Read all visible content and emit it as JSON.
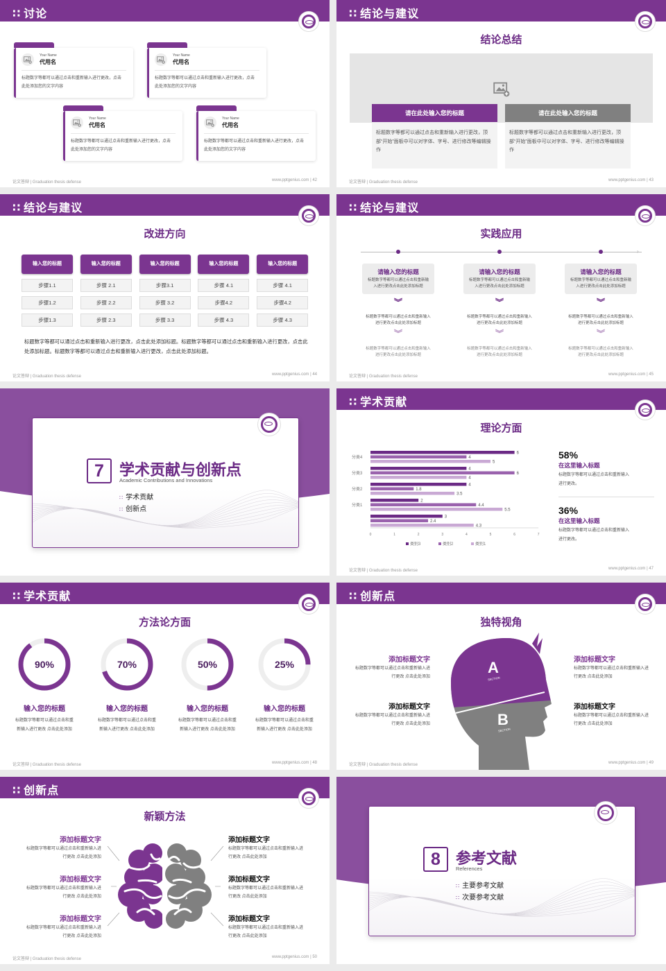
{
  "common": {
    "footer_left": "论文答辩 | Graduation thesis defense",
    "footer_url": "www.pptgenius.com",
    "header_icon": "grid-dots-icon"
  },
  "colors": {
    "primary": "#7b3590",
    "primary_dark": "#6b2a85",
    "gray": "#808080",
    "light_gray": "#f3f3f3"
  },
  "slides": [
    {
      "page": "42",
      "header": "讨论",
      "cards": [
        {
          "name_en": "Your Name",
          "name_cn": "代用名",
          "text": "标题数字等都可以通过点击和重新输入进行更改，点击此处添加您的文字内容"
        },
        {
          "name_en": "Your Name",
          "name_cn": "代用名",
          "text": "标题数字等都可以通过点击和重新输入进行更改，点击此处添加您的文字内容"
        },
        {
          "name_en": "Your Name",
          "name_cn": "代用名",
          "text": "标题数字等都可以通过点击和重新输入进行更改，点击此处添加您的文字内容"
        },
        {
          "name_en": "Your Name",
          "name_cn": "代用名",
          "text": "标题数字等都可以通过点击和重新输入进行更改，点击此处添加您的文字内容"
        }
      ]
    },
    {
      "page": "43",
      "header": "结论与建议",
      "subtitle": "结论总结",
      "columns": [
        {
          "title": "请在此处输入您的标题",
          "text": "标题数字等都可以通过点击和重新输入进行更改，顶部“开始”面板中可以对字体、字号、进行修改等编辑操作"
        },
        {
          "title": "请在此处输入您的标题",
          "text": "标题数字等都可以通过点击和重新输入进行更改，顶部“开始”面板中可以对字体、字号、进行修改等编辑操作"
        }
      ]
    },
    {
      "page": "44",
      "header": "结论与建议",
      "subtitle": "改进方向",
      "columns": [
        {
          "title": "输入您的标题",
          "steps": [
            "步骤1.1",
            "步骤1.2",
            "步骤1.3"
          ]
        },
        {
          "title": "输入您的标题",
          "steps": [
            "步骤 2.1",
            "步骤 2.2",
            "步骤 2.3"
          ]
        },
        {
          "title": "输入您的标题",
          "steps": [
            "步骤3.1",
            "步骤 3.2",
            "步骤 3.3"
          ]
        },
        {
          "title": "输入您的标题",
          "steps": [
            "步骤 4.1",
            "步骤4.2",
            "步骤 4.3"
          ]
        },
        {
          "title": "输入您的标题",
          "steps": [
            "步骤 4.1",
            "步骤4.2",
            "步骤 4.3"
          ]
        }
      ],
      "paragraph": "标题数字等都可以通过点击和重新输入进行更改，点击此处添加标题。标题数字等都可以通过点击和重新输入进行更改，点击此处添加标题。标题数字等都可以通过点击和重新输入进行更改，点击此处添加标题。"
    },
    {
      "page": "45",
      "header": "结论与建议",
      "subtitle": "实践应用",
      "columns": [
        {
          "title": "请输入您的标题",
          "text": "标题数字等都可以通过点击和重新输入进行更改点击此处添加标题",
          "step2": "标题数字等都可以通过点击和重新输入进行更改点击此处添加标题",
          "step3": "标题数字等都可以通过点击和重新输入进行更改点击此处添加标题"
        },
        {
          "title": "请输入您的标题",
          "text": "标题数字等都可以通过点击和重新输入进行更改点击此处添加标题",
          "step2": "标题数字等都可以通过点击和重新输入进行更改点击此处添加标题",
          "step3": "标题数字等都可以通过点击和重新输入进行更改点击此处添加标题"
        },
        {
          "title": "请输入您的标题",
          "text": "标题数字等都可以通过点击和重新输入进行更改点击此处添加标题",
          "step2": "标题数字等都可以通过点击和重新输入进行更改点击此处添加标题",
          "step3": "标题数字等都可以通过点击和重新输入进行更改点击此处添加标题"
        }
      ]
    },
    {
      "page": "46",
      "number": "7",
      "title": "学术贡献与创新点",
      "title_en": "Academic Contributions and Innovations",
      "items": [
        "学术贡献",
        "创新点"
      ]
    },
    {
      "page": "47",
      "header": "学术贡献",
      "subtitle": "理论方面",
      "stats": [
        {
          "value": "58%",
          "title": "在这里输入标题",
          "text": "标题数字等都可以通过点击和重新输入进行更改。"
        },
        {
          "value": "36%",
          "title": "在这里输入标题",
          "text": "标题数字等都可以通过点击和重新输入进行更改。"
        }
      ]
    },
    {
      "page": "48",
      "header": "学术贡献",
      "subtitle": "方法论方面",
      "rings": [
        {
          "percent": 90,
          "label": "90%",
          "title": "输入您的标题",
          "text": "标题数字等都可以通过点击和重新输入进行更改 点击此处添加"
        },
        {
          "percent": 70,
          "label": "70%",
          "title": "输入您的标题",
          "text": "标题数字等都可以通过点击和重新输入进行更改 点击此处添加"
        },
        {
          "percent": 50,
          "label": "50%",
          "title": "输入您的标题",
          "text": "标题数字等都可以通过点击和重新输入进行更改 点击此处添加"
        },
        {
          "percent": 25,
          "label": "25%",
          "title": "输入您的标题",
          "text": "标题数字等都可以通过点击和重新输入进行更改 点击此处添加"
        }
      ]
    },
    {
      "page": "49",
      "header": "创新点",
      "subtitle": "独特视角",
      "head": {
        "a": "A",
        "a_sub": "SECTION",
        "b": "B",
        "b_sub": "SECTION"
      },
      "left": [
        {
          "title": "添加标题文字",
          "text": "标题数字等都可以通过点击和重新输入进行更改 点击此处添加"
        },
        {
          "title": "添加标题文字",
          "text": "标题数字等都可以通过点击和重新输入进行更改 点击此处添加"
        }
      ],
      "right": [
        {
          "title": "添加标题文字",
          "text": "标题数字等都可以通过点击和重新输入进行更改 点击此处添加"
        },
        {
          "title": "添加标题文字",
          "text": "标题数字等都可以通过点击和重新输入进行更改 点击此处添加"
        }
      ]
    },
    {
      "page": "50",
      "header": "创新点",
      "subtitle": "新颖方法",
      "left": [
        {
          "title": "添加标题文字",
          "text": "标题数字等都可以通过点击和重新输入进行更改 点击此处添加"
        },
        {
          "title": "添加标题文字",
          "text": "标题数字等都可以通过点击和重新输入进行更改 点击此处添加"
        },
        {
          "title": "添加标题文字",
          "text": "标题数字等都可以通过点击和重新输入进行更改 点击此处添加"
        }
      ],
      "right": [
        {
          "title": "添加标题文字",
          "text": "标题数字等都可以通过点击和重新输入进行更改 点击此处添加"
        },
        {
          "title": "添加标题文字",
          "text": "标题数字等都可以通过点击和重新输入进行更改 点击此处添加"
        },
        {
          "title": "添加标题文字",
          "text": "标题数字等都可以通过点击和重新输入进行更改 点击此处添加"
        }
      ]
    },
    {
      "page": "51",
      "number": "8",
      "title": "参考文献",
      "title_en": "References",
      "items": [
        "主要参考文献",
        "次要参考文献"
      ]
    }
  ],
  "chart_data": {
    "type": "bar",
    "orientation": "horizontal",
    "categories": [
      "分类4",
      "分类3",
      "分类2",
      "分类1",
      ""
    ],
    "series": [
      {
        "name": "类别3",
        "color": "#6b2a85",
        "values": [
          6,
          4,
          4,
          2,
          3
        ]
      },
      {
        "name": "类别2",
        "color": "#9a62ad",
        "values": [
          4,
          6,
          1.8,
          4.4,
          2.4
        ]
      },
      {
        "name": "类别1",
        "color": "#c9a9d4",
        "values": [
          5,
          4,
          3.5,
          5.5,
          4.3
        ]
      }
    ],
    "xlim": [
      0,
      7
    ],
    "xticks": [
      0,
      1,
      2,
      3,
      4,
      5,
      6,
      7
    ],
    "legend": "bottom",
    "grid": false
  }
}
